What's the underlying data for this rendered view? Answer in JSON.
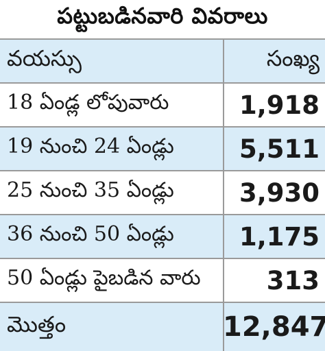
{
  "table": {
    "title": "పట్టుబడినవారి వివరాలు",
    "header": {
      "label": "వయస్సు",
      "value": "సంఖ్య"
    },
    "rows": [
      {
        "label": "18 ఏండ్ల లోపువారు",
        "value": "1,918"
      },
      {
        "label": "19 నుంచి 24 ఏండ్లు",
        "value": "5,511"
      },
      {
        "label": "25 నుంచి 35 ఏండ్లు",
        "value": "3,930"
      },
      {
        "label": "36 నుంచి 50 ఏండ్లు",
        "value": "1,175"
      },
      {
        "label": "50 ఏండ్లు పైబడిన వారు",
        "value": "313"
      }
    ],
    "total": {
      "label": "మొత్తం",
      "value": "12,847"
    }
  },
  "colors": {
    "shaded_row": "#d9ecf8",
    "plain_row": "#ffffff",
    "grid_line": "#9a9a9a",
    "text": "#1a1a1a"
  }
}
